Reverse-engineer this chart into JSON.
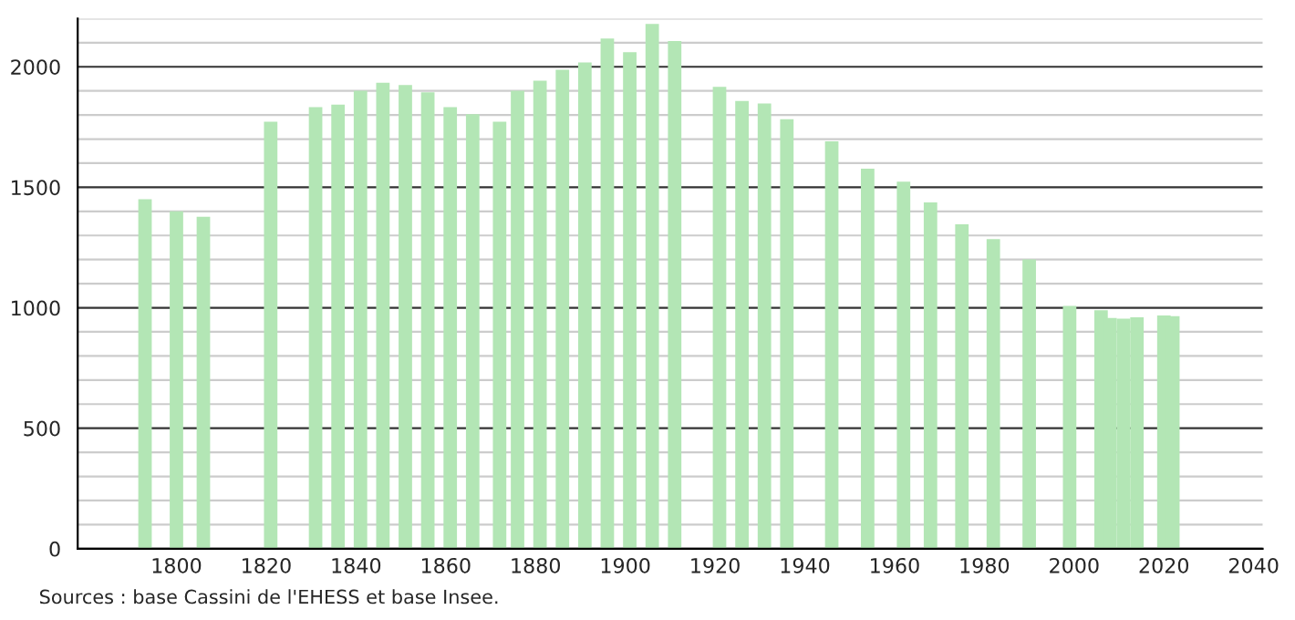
{
  "chart_data": {
    "type": "bar",
    "color": "#b3e6b5",
    "x": [
      1793,
      1800,
      1806,
      1821,
      1831,
      1836,
      1841,
      1846,
      1851,
      1856,
      1861,
      1866,
      1872,
      1876,
      1881,
      1886,
      1891,
      1896,
      1901,
      1906,
      1911,
      1921,
      1926,
      1931,
      1936,
      1946,
      1954,
      1962,
      1968,
      1975,
      1982,
      1990,
      1999,
      2006,
      2008,
      2011,
      2014,
      2020,
      2022
    ],
    "values": [
      1450,
      1400,
      1378,
      1772,
      1833,
      1843,
      1901,
      1934,
      1924,
      1894,
      1833,
      1803,
      1772,
      1901,
      1942,
      1988,
      2018,
      2117,
      2061,
      2178,
      2107,
      1917,
      1858,
      1848,
      1782,
      1691,
      1577,
      1523,
      1437,
      1346,
      1285,
      1201,
      1008,
      990,
      958,
      955,
      960,
      968,
      965
    ],
    "xlim": [
      1778,
      2042
    ],
    "xticks": [
      1800,
      1820,
      1840,
      1860,
      1880,
      1900,
      1920,
      1940,
      1960,
      1980,
      2000,
      2020,
      2040
    ],
    "ylim": [
      0,
      2200
    ],
    "yticks": [
      0,
      {
        "value": 100,
        "label": null
      },
      {
        "value": 200,
        "label": null
      },
      {
        "value": 300,
        "label": null
      },
      {
        "value": 400,
        "label": null
      },
      500,
      {
        "value": 600,
        "label": null
      },
      {
        "value": 700,
        "label": null
      },
      {
        "value": 800,
        "label": null
      },
      {
        "value": 900,
        "label": null
      },
      1000,
      {
        "value": 1100,
        "label": null
      },
      {
        "value": 1200,
        "label": null
      },
      {
        "value": 1300,
        "label": null
      },
      {
        "value": 1400,
        "label": null
      },
      1500,
      {
        "value": 1600,
        "label": null
      },
      {
        "value": 1700,
        "label": null
      },
      {
        "value": 1800,
        "label": null
      },
      {
        "value": 1900,
        "label": null
      },
      2000,
      {
        "value": 2100,
        "label": null
      },
      {
        "value": 2200,
        "label": null
      }
    ],
    "grid": "y",
    "annotations": [
      "Sources : base Cassini de l'EHESS et base Insee."
    ]
  }
}
